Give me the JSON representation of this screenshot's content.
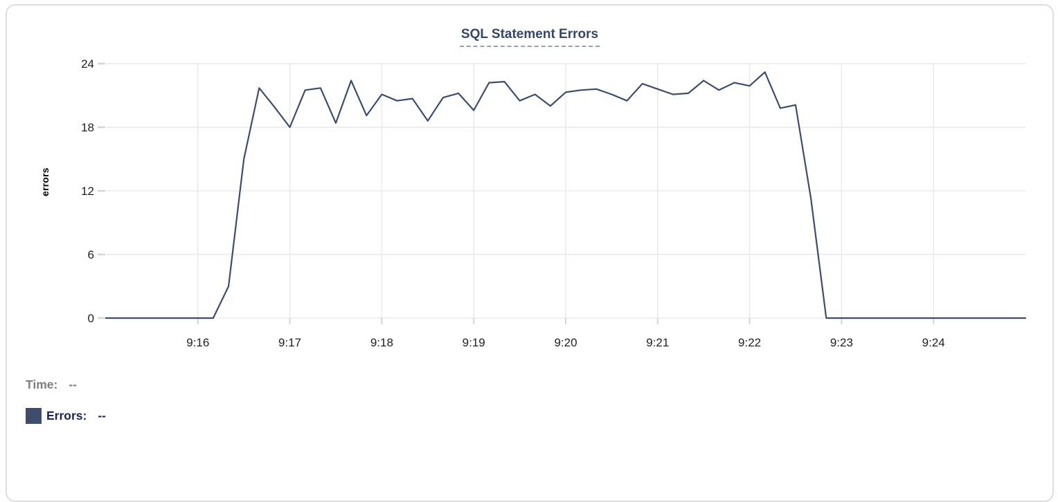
{
  "chart_data": {
    "type": "line",
    "title": "SQL Statement Errors",
    "xlabel": "",
    "ylabel": "errors",
    "series_name": "Errors",
    "x_start": "9:15:00",
    "x_end": "9:25:00",
    "interval_seconds": 10,
    "x_tick_labels": [
      "9:16",
      "9:17",
      "9:18",
      "9:19",
      "9:20",
      "9:21",
      "9:22",
      "9:23",
      "9:24"
    ],
    "y_ticks": [
      0,
      6,
      12,
      18,
      24
    ],
    "ylim": [
      0,
      24
    ],
    "grid": true,
    "legend_position": "bottom-left",
    "line_color": "#3d4c6e",
    "values": [
      0,
      0,
      0,
      0,
      0,
      0,
      0,
      0,
      3,
      15,
      21.7,
      19.9,
      18,
      21.5,
      21.7,
      18.4,
      22.4,
      19.1,
      21.1,
      20.5,
      20.7,
      18.6,
      20.8,
      21.2,
      19.6,
      22.2,
      22.3,
      20.5,
      21.1,
      20,
      21.3,
      21.5,
      21.6,
      21.1,
      20.5,
      22.1,
      21.6,
      21.1,
      21.2,
      22.4,
      21.5,
      22.2,
      21.9,
      23.2,
      19.8,
      20.1,
      11.3,
      0,
      0,
      0,
      0,
      0,
      0,
      0,
      0,
      0,
      0,
      0,
      0,
      0,
      0
    ]
  },
  "legend": {
    "time_label": "Time:",
    "time_value": "--",
    "errors_label": "Errors:",
    "errors_value": "--",
    "swatch_color": "#3d4d6b"
  },
  "colors": {
    "title": "#36466b",
    "title_underline": "#96a0b4",
    "grid": "#eaeaea",
    "tick_mark": "#d5d5d5",
    "axis_text": "#1f1f1f",
    "legend_time_text": "#7d7d7d",
    "legend_errors_text": "#1b2750",
    "card_border": "#dedede",
    "background": "#ffffff"
  }
}
